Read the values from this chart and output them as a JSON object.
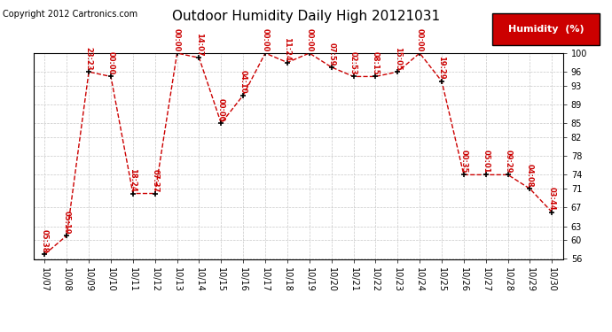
{
  "title": "Outdoor Humidity Daily High 20121031",
  "copyright": "Copyright 2012 Cartronics.com",
  "legend_label": "Humidity  (%)",
  "ylim": [
    56,
    100
  ],
  "yticks": [
    56,
    60,
    63,
    67,
    71,
    74,
    78,
    82,
    85,
    89,
    93,
    96,
    100
  ],
  "x_labels": [
    "10/07",
    "10/08",
    "10/09",
    "10/10",
    "10/11",
    "10/12",
    "10/13",
    "10/14",
    "10/15",
    "10/16",
    "10/17",
    "10/18",
    "10/19",
    "10/20",
    "10/21",
    "10/22",
    "10/23",
    "10/24",
    "10/25",
    "10/26",
    "10/27",
    "10/28",
    "10/29",
    "10/30"
  ],
  "data_points": [
    {
      "x": 0,
      "value": 57,
      "label": "05:38"
    },
    {
      "x": 1,
      "value": 61,
      "label": "05:19"
    },
    {
      "x": 2,
      "value": 96,
      "label": "23:23"
    },
    {
      "x": 3,
      "value": 95,
      "label": "00:00"
    },
    {
      "x": 4,
      "value": 70,
      "label": "18:24"
    },
    {
      "x": 5,
      "value": 70,
      "label": "07:37"
    },
    {
      "x": 6,
      "value": 100,
      "label": "00:00"
    },
    {
      "x": 7,
      "value": 99,
      "label": "14:07"
    },
    {
      "x": 8,
      "value": 85,
      "label": "00:00"
    },
    {
      "x": 9,
      "value": 91,
      "label": "04:10"
    },
    {
      "x": 10,
      "value": 100,
      "label": "00:00"
    },
    {
      "x": 11,
      "value": 98,
      "label": "11:24"
    },
    {
      "x": 12,
      "value": 100,
      "label": "00:00"
    },
    {
      "x": 13,
      "value": 97,
      "label": "07:59"
    },
    {
      "x": 14,
      "value": 95,
      "label": "02:53"
    },
    {
      "x": 15,
      "value": 95,
      "label": "08:15"
    },
    {
      "x": 16,
      "value": 96,
      "label": "15:05"
    },
    {
      "x": 17,
      "value": 100,
      "label": "00:00"
    },
    {
      "x": 18,
      "value": 94,
      "label": "19:29"
    },
    {
      "x": 19,
      "value": 74,
      "label": "00:35"
    },
    {
      "x": 20,
      "value": 74,
      "label": "05:01"
    },
    {
      "x": 21,
      "value": 74,
      "label": "09:29"
    },
    {
      "x": 22,
      "value": 71,
      "label": "04:08"
    },
    {
      "x": 23,
      "value": 66,
      "label": "03:44"
    }
  ],
  "line_color": "#cc0000",
  "marker_color": "#000000",
  "label_color": "#cc0000",
  "bg_color": "#ffffff",
  "grid_color": "#c8c8c8",
  "title_color": "#000000",
  "legend_bg": "#cc0000",
  "legend_text_color": "#ffffff",
  "title_fontsize": 11,
  "copyright_fontsize": 7,
  "tick_label_fontsize": 7,
  "point_label_fontsize": 6
}
